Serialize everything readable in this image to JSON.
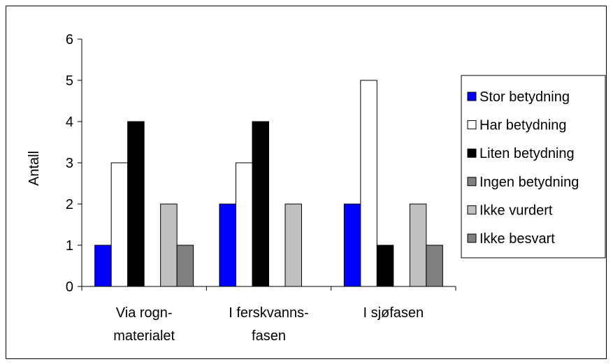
{
  "chart_data": {
    "type": "bar",
    "title": "",
    "xlabel": "",
    "ylabel": "Antall",
    "ylim": [
      0,
      6
    ],
    "yticks": [
      0,
      1,
      2,
      3,
      4,
      5,
      6
    ],
    "grid": false,
    "legend_position": "right",
    "categories": [
      {
        "lines": [
          "Via rogn-",
          "materialet"
        ]
      },
      {
        "lines": [
          "I ferskvanns-",
          "fasen"
        ]
      },
      {
        "lines": [
          "I sjøfasen"
        ]
      }
    ],
    "series": [
      {
        "name": "Stor betydning",
        "color": "#0000ff",
        "values": [
          1,
          2,
          2
        ]
      },
      {
        "name": "Har betydning",
        "color": "#ffffff",
        "values": [
          3,
          3,
          5
        ]
      },
      {
        "name": "Liten betydning",
        "color": "#000000",
        "values": [
          4,
          4,
          1
        ]
      },
      {
        "name": "Ingen betydning",
        "color": "#808080",
        "values": [
          0,
          0,
          0
        ]
      },
      {
        "name": "Ikke vurdert",
        "color": "#c0c0c0",
        "values": [
          2,
          2,
          2
        ]
      },
      {
        "name": "Ikke besvart",
        "color": "#808080",
        "values": [
          1,
          0,
          1
        ]
      }
    ]
  }
}
